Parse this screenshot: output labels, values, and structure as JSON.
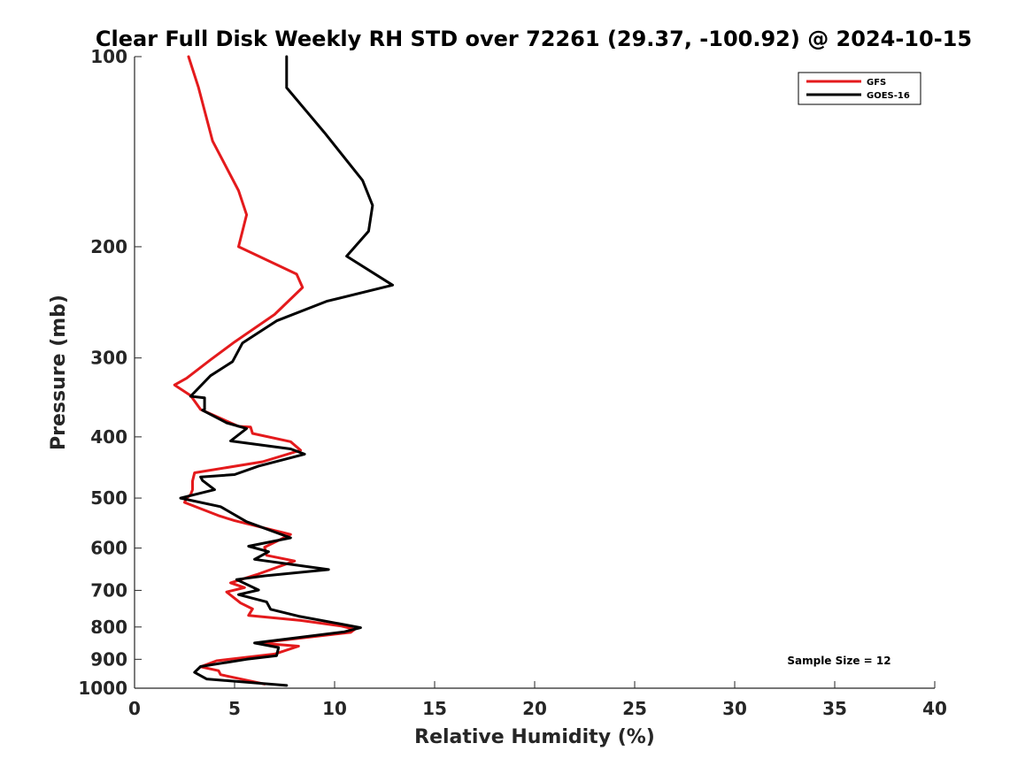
{
  "chart_data": {
    "type": "line",
    "title": "Clear Full Disk Weekly RH STD over 72261 (29.37, -100.92) @ 2024-10-15",
    "xlabel": "Relative Humidity (%)",
    "ylabel": "Pressure (mb)",
    "xlim": [
      0,
      40
    ],
    "ylim": [
      100,
      1000
    ],
    "y_scale": "log",
    "y_reversed": true,
    "x_ticks": [
      "0",
      "5",
      "10",
      "15",
      "20",
      "25",
      "30",
      "35",
      "40"
    ],
    "y_ticks": [
      "100",
      "200",
      "300",
      "400",
      "500",
      "600",
      "700",
      "800",
      "900",
      "1000"
    ],
    "grid": false,
    "legend_position": "top-right",
    "annotation": "Sample Size = 12",
    "series": [
      {
        "name": "GFS",
        "color": "#e41a1c",
        "x": [
          2.7,
          3.2,
          3.9,
          5.2,
          5.6,
          5.2,
          8.1,
          8.4,
          7.0,
          5.0,
          3.8,
          2.6,
          2.0,
          2.8,
          3.3,
          5.2,
          5.8,
          5.9,
          7.8,
          8.3,
          6.4,
          3.0,
          2.9,
          2.9,
          2.8,
          2.6,
          2.5,
          4.2,
          5.0,
          7.8,
          6.5,
          6.6,
          8.0,
          6.1,
          4.8,
          5.5,
          4.6,
          5.3,
          5.9,
          5.7,
          8.3,
          10.3,
          11.0,
          10.8,
          6.2,
          8.2,
          7.0,
          4.1,
          3.3,
          4.2,
          4.3,
          6.5
        ],
        "y": [
          100,
          112,
          136,
          163,
          178,
          200,
          221,
          232,
          256,
          283,
          302,
          323,
          331,
          344,
          362,
          385,
          386,
          395,
          407,
          420,
          438,
          456,
          470,
          485,
          494,
          500,
          508,
          533,
          543,
          571,
          598,
          616,
          629,
          661,
          681,
          693,
          704,
          733,
          749,
          767,
          781,
          797,
          807,
          816,
          848,
          858,
          883,
          905,
          925,
          938,
          952,
          985
        ]
      },
      {
        "name": "GOES-16",
        "color": "#000000",
        "x": [
          7.6,
          7.6,
          9.5,
          11.4,
          11.9,
          11.7,
          10.6,
          12.9,
          9.6,
          7.1,
          5.4,
          4.9,
          3.8,
          2.8,
          3.5,
          3.5,
          3.4,
          4.6,
          5.6,
          4.8,
          7.8,
          8.5,
          6.2,
          5.0,
          3.3,
          3.4,
          4.0,
          2.3,
          4.3,
          5.6,
          7.8,
          5.7,
          6.7,
          6.0,
          9.7,
          6.5,
          5.1,
          6.2,
          5.2,
          6.6,
          6.8,
          8.2,
          11.3,
          10.5,
          6.0,
          7.2,
          7.1,
          5.6,
          3.3,
          3.0,
          3.6,
          7.6
        ],
        "y": [
          100,
          112,
          132,
          157,
          172,
          189,
          207,
          230,
          244,
          262,
          284,
          304,
          320,
          345,
          347,
          362,
          363,
          380,
          388,
          406,
          418,
          426,
          445,
          459,
          463,
          469,
          485,
          500,
          516,
          545,
          578,
          596,
          608,
          625,
          649,
          664,
          673,
          699,
          711,
          730,
          750,
          769,
          802,
          814,
          848,
          862,
          888,
          900,
          924,
          944,
          967,
          990
        ]
      }
    ]
  }
}
